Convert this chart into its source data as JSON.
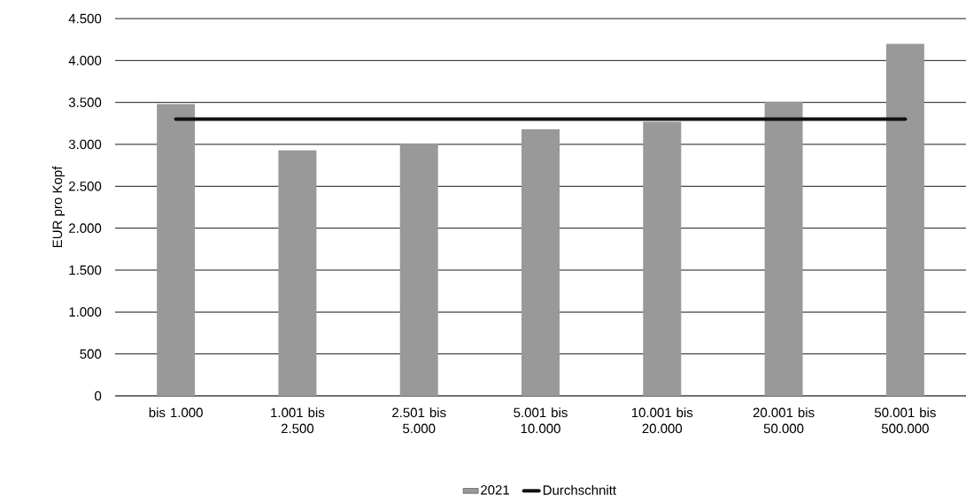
{
  "chart_data": {
    "type": "bar",
    "ylabel": "EUR pro Kopf",
    "categories": [
      "bis 1.000",
      "1.001 bis 2.500",
      "2.501 bis 5.000",
      "5.001 bis 10.000",
      "10.001 bis 20.000",
      "20.001 bis 50.000",
      "50.001 bis 500.000"
    ],
    "series": [
      {
        "name": "2021",
        "color": "#999999",
        "values": [
          3480,
          2930,
          3010,
          3180,
          3270,
          3510,
          4200
        ]
      },
      {
        "name": "Durchschnitt",
        "type": "line",
        "color": "#111111",
        "values": [
          3300,
          3300,
          3300,
          3300,
          3300,
          3300,
          3300
        ]
      }
    ],
    "ylim": [
      0,
      4500
    ],
    "yticks": [
      0,
      500,
      {
        "value": 1000,
        "label": "1.000"
      },
      {
        "value": 1500,
        "label": "1.500"
      },
      {
        "value": 2000,
        "label": "2.000"
      },
      {
        "value": 2500,
        "label": "2.500"
      },
      {
        "value": 3000,
        "label": "3.000"
      },
      {
        "value": 3500,
        "label": "3.500"
      },
      {
        "value": 4000,
        "label": "4.000"
      },
      {
        "value": 4500,
        "label": "4.500"
      }
    ],
    "grid": "y",
    "legend": "bottom"
  }
}
